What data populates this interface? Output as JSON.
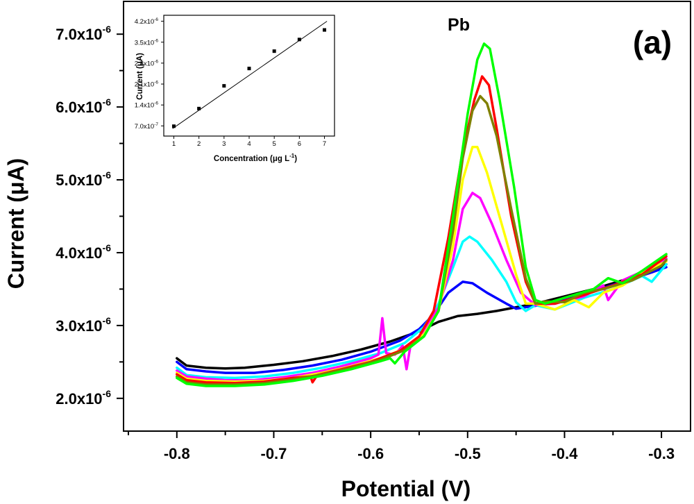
{
  "chart_data": [
    {
      "type": "line",
      "title": "",
      "panel_label": "(a)",
      "annotation": "Pb",
      "xlabel": "Potential (V)",
      "ylabel": "Current (μA)",
      "xlim": [
        -0.855,
        -0.27
      ],
      "ylim": [
        1.55e-06,
        7.45e-06
      ],
      "xticks": [
        -0.8,
        -0.7,
        -0.6,
        -0.5,
        -0.4,
        -0.3
      ],
      "xtick_labels": [
        "-0.8",
        "-0.7",
        "-0.6",
        "-0.5",
        "-0.4",
        "-0.3"
      ],
      "yticks": [
        2e-06,
        3e-06,
        4e-06,
        5e-06,
        6e-06,
        7e-06
      ],
      "ytick_labels": [
        {
          "mantissa": "2.0x10",
          "exponent": "-6"
        },
        {
          "mantissa": "3.0x10",
          "exponent": "-6"
        },
        {
          "mantissa": "4.0x10",
          "exponent": "-6"
        },
        {
          "mantissa": "5.0x10",
          "exponent": "-6"
        },
        {
          "mantissa": "6.0x10",
          "exponent": "-6"
        },
        {
          "mantissa": "7.0x10",
          "exponent": "-6"
        }
      ],
      "series": [
        {
          "name": "black",
          "color": "#000000",
          "points": [
            [
              -0.8,
              2.55e-06
            ],
            [
              -0.79,
              2.45e-06
            ],
            [
              -0.77,
              2.42e-06
            ],
            [
              -0.75,
              2.41e-06
            ],
            [
              -0.73,
              2.42e-06
            ],
            [
              -0.7,
              2.46e-06
            ],
            [
              -0.67,
              2.51e-06
            ],
            [
              -0.64,
              2.58e-06
            ],
            [
              -0.61,
              2.67e-06
            ],
            [
              -0.58,
              2.78e-06
            ],
            [
              -0.55,
              2.92e-06
            ],
            [
              -0.53,
              3.05e-06
            ],
            [
              -0.51,
              3.13e-06
            ],
            [
              -0.49,
              3.16e-06
            ],
            [
              -0.47,
              3.2e-06
            ],
            [
              -0.45,
              3.25e-06
            ],
            [
              -0.43,
              3.3e-06
            ],
            [
              -0.4,
              3.4e-06
            ],
            [
              -0.37,
              3.5e-06
            ],
            [
              -0.34,
              3.62e-06
            ],
            [
              -0.31,
              3.75e-06
            ],
            [
              -0.295,
              3.84e-06
            ]
          ]
        },
        {
          "name": "blue",
          "color": "#0000ff",
          "points": [
            [
              -0.8,
              2.5e-06
            ],
            [
              -0.79,
              2.4e-06
            ],
            [
              -0.77,
              2.37e-06
            ],
            [
              -0.75,
              2.35e-06
            ],
            [
              -0.72,
              2.35e-06
            ],
            [
              -0.69,
              2.39e-06
            ],
            [
              -0.66,
              2.45e-06
            ],
            [
              -0.63,
              2.53e-06
            ],
            [
              -0.6,
              2.64e-06
            ],
            [
              -0.57,
              2.79e-06
            ],
            [
              -0.55,
              2.95e-06
            ],
            [
              -0.535,
              3.15e-06
            ],
            [
              -0.52,
              3.45e-06
            ],
            [
              -0.505,
              3.6e-06
            ],
            [
              -0.495,
              3.58e-06
            ],
            [
              -0.48,
              3.45e-06
            ],
            [
              -0.46,
              3.3e-06
            ],
            [
              -0.45,
              3.23e-06
            ],
            [
              -0.43,
              3.27e-06
            ],
            [
              -0.4,
              3.35e-06
            ],
            [
              -0.37,
              3.47e-06
            ],
            [
              -0.34,
              3.6e-06
            ],
            [
              -0.31,
              3.73e-06
            ],
            [
              -0.295,
              3.8e-06
            ]
          ]
        },
        {
          "name": "cyan",
          "color": "#00ffff",
          "points": [
            [
              -0.8,
              2.42e-06
            ],
            [
              -0.79,
              2.32e-06
            ],
            [
              -0.77,
              2.29e-06
            ],
            [
              -0.74,
              2.28e-06
            ],
            [
              -0.71,
              2.3e-06
            ],
            [
              -0.68,
              2.35e-06
            ],
            [
              -0.65,
              2.42e-06
            ],
            [
              -0.62,
              2.51e-06
            ],
            [
              -0.59,
              2.62e-06
            ],
            [
              -0.565,
              2.76e-06
            ],
            [
              -0.545,
              2.98e-06
            ],
            [
              -0.53,
              3.3e-06
            ],
            [
              -0.515,
              3.8e-06
            ],
            [
              -0.505,
              4.15e-06
            ],
            [
              -0.498,
              4.22e-06
            ],
            [
              -0.49,
              4.15e-06
            ],
            [
              -0.475,
              3.9e-06
            ],
            [
              -0.46,
              3.6e-06
            ],
            [
              -0.45,
              3.32e-06
            ],
            [
              -0.44,
              3.2e-06
            ],
            [
              -0.43,
              3.28e-06
            ],
            [
              -0.41,
              3.22e-06
            ],
            [
              -0.38,
              3.38e-06
            ],
            [
              -0.35,
              3.5e-06
            ],
            [
              -0.32,
              3.68e-06
            ],
            [
              -0.31,
              3.6e-06
            ],
            [
              -0.295,
              3.84e-06
            ]
          ]
        },
        {
          "name": "magenta",
          "color": "#ff00ff",
          "points": [
            [
              -0.8,
              2.38e-06
            ],
            [
              -0.79,
              2.3e-06
            ],
            [
              -0.77,
              2.27e-06
            ],
            [
              -0.75,
              2.25e-06
            ],
            [
              -0.72,
              2.25e-06
            ],
            [
              -0.69,
              2.29e-06
            ],
            [
              -0.66,
              2.35e-06
            ],
            [
              -0.63,
              2.44e-06
            ],
            [
              -0.6,
              2.55e-06
            ],
            [
              -0.592,
              2.6e-06
            ],
            [
              -0.588,
              3.1e-06
            ],
            [
              -0.584,
              2.62e-06
            ],
            [
              -0.575,
              2.6e-06
            ],
            [
              -0.567,
              2.72e-06
            ],
            [
              -0.563,
              2.4e-06
            ],
            [
              -0.559,
              2.72e-06
            ],
            [
              -0.545,
              2.92e-06
            ],
            [
              -0.53,
              3.25e-06
            ],
            [
              -0.515,
              3.9e-06
            ],
            [
              -0.505,
              4.6e-06
            ],
            [
              -0.495,
              4.82e-06
            ],
            [
              -0.487,
              4.75e-06
            ],
            [
              -0.475,
              4.4e-06
            ],
            [
              -0.46,
              3.9e-06
            ],
            [
              -0.445,
              3.45e-06
            ],
            [
              -0.43,
              3.28e-06
            ],
            [
              -0.41,
              3.3e-06
            ],
            [
              -0.38,
              3.4e-06
            ],
            [
              -0.36,
              3.55e-06
            ],
            [
              -0.355,
              3.35e-06
            ],
            [
              -0.34,
              3.62e-06
            ],
            [
              -0.31,
              3.8e-06
            ],
            [
              -0.295,
              3.92e-06
            ]
          ]
        },
        {
          "name": "yellow",
          "color": "#ffff00",
          "points": [
            [
              -0.8,
              2.35e-06
            ],
            [
              -0.79,
              2.27e-06
            ],
            [
              -0.77,
              2.24e-06
            ],
            [
              -0.74,
              2.23e-06
            ],
            [
              -0.71,
              2.24e-06
            ],
            [
              -0.68,
              2.28e-06
            ],
            [
              -0.65,
              2.35e-06
            ],
            [
              -0.62,
              2.44e-06
            ],
            [
              -0.59,
              2.55e-06
            ],
            [
              -0.565,
              2.68e-06
            ],
            [
              -0.545,
              2.88e-06
            ],
            [
              -0.53,
              3.2e-06
            ],
            [
              -0.515,
              4.1e-06
            ],
            [
              -0.505,
              5e-06
            ],
            [
              -0.495,
              5.45e-06
            ],
            [
              -0.49,
              5.45e-06
            ],
            [
              -0.48,
              5.1e-06
            ],
            [
              -0.465,
              4.4e-06
            ],
            [
              -0.45,
              3.7e-06
            ],
            [
              -0.44,
              3.3e-06
            ],
            [
              -0.43,
              3.3e-06
            ],
            [
              -0.41,
              3.22e-06
            ],
            [
              -0.39,
              3.35e-06
            ],
            [
              -0.375,
              3.25e-06
            ],
            [
              -0.36,
              3.45e-06
            ],
            [
              -0.34,
              3.55e-06
            ],
            [
              -0.32,
              3.72e-06
            ],
            [
              -0.295,
              3.88e-06
            ]
          ]
        },
        {
          "name": "red",
          "color": "#ff0000",
          "points": [
            [
              -0.8,
              2.33e-06
            ],
            [
              -0.79,
              2.25e-06
            ],
            [
              -0.77,
              2.22e-06
            ],
            [
              -0.74,
              2.21e-06
            ],
            [
              -0.71,
              2.23e-06
            ],
            [
              -0.68,
              2.28e-06
            ],
            [
              -0.662,
              2.3e-06
            ],
            [
              -0.66,
              2.22e-06
            ],
            [
              -0.655,
              2.32e-06
            ],
            [
              -0.63,
              2.4e-06
            ],
            [
              -0.6,
              2.5e-06
            ],
            [
              -0.57,
              2.65e-06
            ],
            [
              -0.55,
              2.85e-06
            ],
            [
              -0.535,
              3.2e-06
            ],
            [
              -0.52,
              4.2e-06
            ],
            [
              -0.505,
              5.4e-06
            ],
            [
              -0.493,
              6.1e-06
            ],
            [
              -0.485,
              6.42e-06
            ],
            [
              -0.478,
              6.3e-06
            ],
            [
              -0.47,
              5.7e-06
            ],
            [
              -0.455,
              4.5e-06
            ],
            [
              -0.44,
              3.6e-06
            ],
            [
              -0.43,
              3.3e-06
            ],
            [
              -0.41,
              3.3e-06
            ],
            [
              -0.38,
              3.42e-06
            ],
            [
              -0.35,
              3.55e-06
            ],
            [
              -0.32,
              3.7e-06
            ],
            [
              -0.295,
              3.95e-06
            ]
          ]
        },
        {
          "name": "olive",
          "color": "#808000",
          "points": [
            [
              -0.8,
              2.3e-06
            ],
            [
              -0.79,
              2.22e-06
            ],
            [
              -0.77,
              2.19e-06
            ],
            [
              -0.74,
              2.19e-06
            ],
            [
              -0.71,
              2.21e-06
            ],
            [
              -0.68,
              2.26e-06
            ],
            [
              -0.65,
              2.33e-06
            ],
            [
              -0.62,
              2.42e-06
            ],
            [
              -0.59,
              2.53e-06
            ],
            [
              -0.565,
              2.66e-06
            ],
            [
              -0.545,
              2.85e-06
            ],
            [
              -0.53,
              3.2e-06
            ],
            [
              -0.515,
              4.3e-06
            ],
            [
              -0.505,
              5.3e-06
            ],
            [
              -0.495,
              5.95e-06
            ],
            [
              -0.487,
              6.15e-06
            ],
            [
              -0.48,
              6.05e-06
            ],
            [
              -0.47,
              5.6e-06
            ],
            [
              -0.455,
              4.6e-06
            ],
            [
              -0.44,
              3.65e-06
            ],
            [
              -0.43,
              3.3e-06
            ],
            [
              -0.42,
              3.33e-06
            ],
            [
              -0.4,
              3.32e-06
            ],
            [
              -0.38,
              3.45e-06
            ],
            [
              -0.36,
              3.5e-06
            ],
            [
              -0.33,
              3.62e-06
            ],
            [
              -0.3,
              3.82e-06
            ],
            [
              -0.295,
              3.9e-06
            ]
          ]
        },
        {
          "name": "green",
          "color": "#00ff00",
          "points": [
            [
              -0.8,
              2.28e-06
            ],
            [
              -0.79,
              2.2e-06
            ],
            [
              -0.77,
              2.17e-06
            ],
            [
              -0.74,
              2.17e-06
            ],
            [
              -0.71,
              2.19e-06
            ],
            [
              -0.68,
              2.24e-06
            ],
            [
              -0.65,
              2.31e-06
            ],
            [
              -0.62,
              2.4e-06
            ],
            [
              -0.59,
              2.51e-06
            ],
            [
              -0.58,
              2.55e-06
            ],
            [
              -0.575,
              2.48e-06
            ],
            [
              -0.565,
              2.64e-06
            ],
            [
              -0.545,
              2.85e-06
            ],
            [
              -0.53,
              3.2e-06
            ],
            [
              -0.515,
              4.5e-06
            ],
            [
              -0.5,
              5.9e-06
            ],
            [
              -0.49,
              6.65e-06
            ],
            [
              -0.483,
              6.87e-06
            ],
            [
              -0.477,
              6.8e-06
            ],
            [
              -0.467,
              6.1e-06
            ],
            [
              -0.452,
              4.9e-06
            ],
            [
              -0.44,
              3.8e-06
            ],
            [
              -0.43,
              3.35e-06
            ],
            [
              -0.42,
              3.3e-06
            ],
            [
              -0.4,
              3.38e-06
            ],
            [
              -0.37,
              3.5e-06
            ],
            [
              -0.355,
              3.65e-06
            ],
            [
              -0.34,
              3.58e-06
            ],
            [
              -0.32,
              3.75e-06
            ],
            [
              -0.295,
              3.98e-06
            ]
          ]
        }
      ]
    },
    {
      "type": "scatter",
      "inset": true,
      "xlabel": "Concentration (μg L",
      "xlabel_sup": "-1",
      "xlabel_end": ")",
      "ylabel": "Current (μA)",
      "xlim": [
        0.6,
        7.4
      ],
      "ylim": [
        3.6e-07,
        4.4e-06
      ],
      "xticks": [
        1,
        2,
        3,
        4,
        5,
        6,
        7
      ],
      "xtick_labels": [
        "1",
        "2",
        "3",
        "4",
        "5",
        "6",
        "7"
      ],
      "yticks": [
        7e-07,
        1.4e-06,
        2.1e-06,
        2.8e-06,
        3.5e-06,
        4.2e-06
      ],
      "ytick_labels": [
        {
          "mantissa": "7.0x10",
          "exponent": "-7"
        },
        {
          "mantissa": "1.4x10",
          "exponent": "-6"
        },
        {
          "mantissa": "2.1x10",
          "exponent": "-6"
        },
        {
          "mantissa": "2.8x10",
          "exponent": "-6"
        },
        {
          "mantissa": "3.5x10",
          "exponent": "-6"
        },
        {
          "mantissa": "4.2x10",
          "exponent": "-6"
        }
      ],
      "points": [
        [
          1,
          6.9e-07
        ],
        [
          2,
          1.28e-06
        ],
        [
          3,
          2.04e-06
        ],
        [
          4,
          2.62e-06
        ],
        [
          5,
          3.2e-06
        ],
        [
          6,
          3.59e-06
        ],
        [
          7,
          3.91e-06
        ]
      ],
      "fit_line": [
        [
          0.95,
          6.1e-07
        ],
        [
          7.1,
          4.2e-06
        ]
      ]
    }
  ]
}
